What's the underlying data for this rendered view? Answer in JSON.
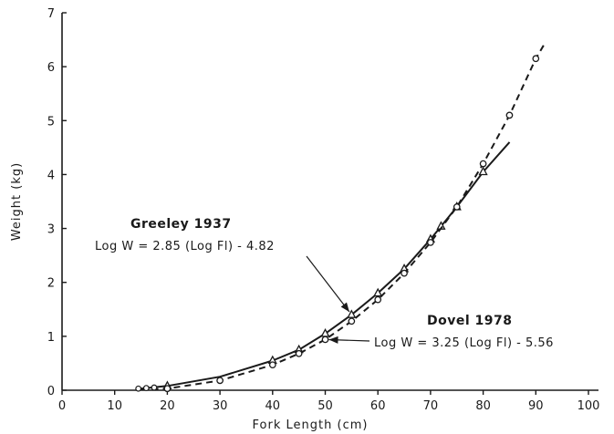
{
  "chart_data": {
    "type": "line",
    "title": "",
    "xlabel": "Fork  Length  (cm)",
    "ylabel": "Weight  (kg)",
    "xlim": [
      0,
      100
    ],
    "ylim": [
      0,
      7
    ],
    "x_ticks": [
      0,
      10,
      20,
      30,
      40,
      50,
      60,
      70,
      80,
      90,
      100
    ],
    "y_ticks": [
      0,
      1,
      2,
      3,
      4,
      5,
      6,
      7
    ],
    "grid": false,
    "series": [
      {
        "name": "Greeley 1937",
        "line_style": "solid",
        "marker": "triangle",
        "x": [
          15,
          20,
          30,
          40,
          45,
          50,
          55,
          60,
          65,
          70,
          75,
          80,
          85
        ],
        "y": [
          0.03,
          0.08,
          0.25,
          0.55,
          0.75,
          1.05,
          1.4,
          1.8,
          2.25,
          2.8,
          3.4,
          4.05,
          4.6
        ],
        "marker_x": [
          20,
          40,
          45,
          50,
          55,
          60,
          65,
          70,
          72,
          75,
          80
        ]
      },
      {
        "name": "Dovel 1978",
        "line_style": "dashed",
        "marker": "circle",
        "x": [
          15,
          20,
          30,
          40,
          45,
          50,
          55,
          60,
          65,
          70,
          75,
          80,
          85,
          90,
          91.5
        ],
        "y": [
          0.01,
          0.03,
          0.18,
          0.47,
          0.68,
          0.94,
          1.28,
          1.68,
          2.17,
          2.74,
          3.4,
          4.2,
          5.1,
          6.15,
          6.4
        ],
        "marker_x": [
          20,
          30,
          40,
          45,
          50,
          55,
          60,
          65,
          70,
          75,
          80,
          85,
          90
        ]
      }
    ],
    "annotations": [
      {
        "id": "greeley",
        "title": "Greeley 1937",
        "equation": "Log W = 2.85 (Log Fl) - 4.82",
        "points_to": {
          "x": 55,
          "y": 1.4
        }
      },
      {
        "id": "dovel",
        "title": "Dovel 1978",
        "equation": "Log  W  =  3.25  (Log  Fl) - 5.56",
        "points_to": {
          "x": 50,
          "y": 0.94
        }
      }
    ]
  }
}
